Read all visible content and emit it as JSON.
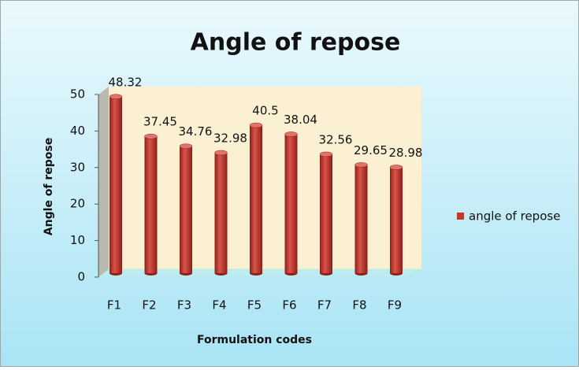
{
  "chart_data": {
    "type": "bar",
    "title": "Angle of repose",
    "x_label": "Formulation codes",
    "y_label": "Angle of repose",
    "categories": [
      "F1",
      "F2",
      "F3",
      "F4",
      "F5",
      "F6",
      "F7",
      "F8",
      "F9"
    ],
    "series": [
      {
        "name": "angle of repose",
        "color": "#c0392b",
        "values": [
          48.32,
          37.45,
          34.76,
          32.98,
          40.5,
          38.04,
          32.56,
          29.65,
          28.98
        ]
      }
    ],
    "ylim": [
      0,
      50
    ],
    "yticks": [
      0,
      10,
      20,
      30,
      40,
      50
    ],
    "grid": false,
    "legend": "right"
  }
}
